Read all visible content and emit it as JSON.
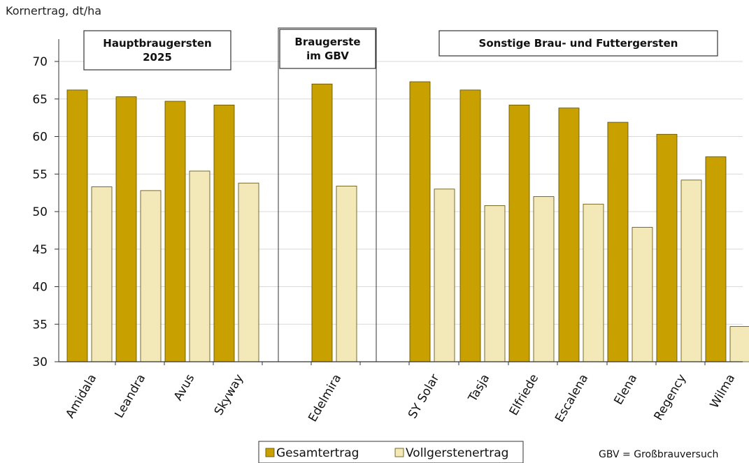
{
  "chart_data": {
    "type": "bar",
    "ylabel": "Kornertrag, dt/ha",
    "ylim": [
      30,
      70
    ],
    "yticks": [
      30,
      35,
      40,
      45,
      50,
      55,
      60,
      65,
      70
    ],
    "grid": true,
    "categories": [
      "Amidala",
      "Leandra",
      "Avus",
      "Skyway",
      "Edelmira",
      "SY Solar",
      "Tasja",
      "Elfriede",
      "Escalena",
      "Elena",
      "Regency",
      "Wilma"
    ],
    "series": [
      {
        "name": "Gesamtertrag",
        "color": "#c8a100",
        "values": [
          66.2,
          65.3,
          64.7,
          64.2,
          67.0,
          67.3,
          66.2,
          64.2,
          63.8,
          61.9,
          60.3,
          57.3
        ]
      },
      {
        "name": "Vollgerstenertrag",
        "color": "#f2e8b8",
        "values": [
          53.3,
          52.8,
          55.4,
          53.8,
          53.4,
          53.0,
          50.8,
          52.0,
          51.0,
          47.9,
          54.2,
          34.7
        ]
      }
    ],
    "groups": [
      {
        "label_lines": [
          "Hauptbraugersten",
          "2025"
        ],
        "members": [
          "Amidala",
          "Leandra",
          "Avus",
          "Skyway"
        ]
      },
      {
        "label_lines": [
          "Braugerste",
          "im GBV"
        ],
        "members": [
          "Edelmira"
        ]
      },
      {
        "label_lines": [
          "Sonstige Brau- und Futtergersten"
        ],
        "members": [
          "SY Solar",
          "Tasja",
          "Elfriede",
          "Escalena",
          "Elena",
          "Regency",
          "Wilma"
        ]
      }
    ],
    "legend_position": "bottom",
    "annotation": "GBV = Großbrauversuch"
  }
}
